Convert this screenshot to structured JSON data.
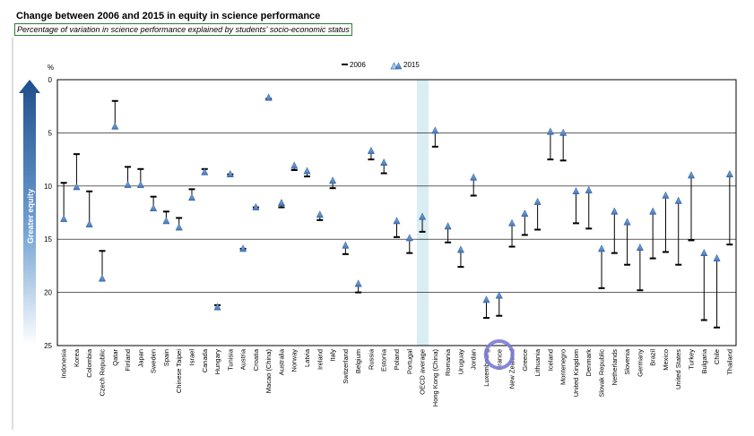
{
  "title": "Change between 2006 and 2015 in equity in science performance",
  "subtitle": "Percentage of variation in science performance explained by students' socio-economic status",
  "arrow_label": "Greater equity",
  "chart_data": {
    "type": "scatter",
    "ylabel": "%",
    "ylim": [
      0,
      25
    ],
    "y_inverted": true,
    "yticks": [
      0,
      5,
      10,
      15,
      20,
      25
    ],
    "grid": true,
    "legend_position": "top-center",
    "highlight_category": "OECD average",
    "circled_category": "France",
    "categories": [
      "Indonesia",
      "Korea",
      "Colombia",
      "Czech Republic",
      "Qatar",
      "Finland",
      "Japan",
      "Sweden",
      "Spain",
      "Chinese Taipei",
      "Israel",
      "Canada",
      "Hungary",
      "Tunisia",
      "Austria",
      "Croatia",
      "Macao (China)",
      "Australia",
      "Norway",
      "Latvia",
      "Ireland",
      "Italy",
      "Switzerland",
      "Belgium",
      "Russia",
      "Estonia",
      "Poland",
      "Portugal",
      "OECD average",
      "Hong Kong (China)",
      "Romania",
      "Uruguay",
      "Jordan",
      "Luxembourg",
      "France",
      "New Zealand",
      "Greece",
      "Lithuania",
      "Iceland",
      "Montenegro",
      "United Kingdom",
      "Denmark",
      "Slovak Republic",
      "Netherlands",
      "Slovenia",
      "Germany",
      "Brazil",
      "Mexico",
      "United States",
      "Turkey",
      "Bulgaria",
      "Chile",
      "Thailand"
    ],
    "series": [
      {
        "name": "2006",
        "values": [
          9.7,
          7,
          10.5,
          16.1,
          2,
          8.2,
          8.4,
          11,
          12.4,
          13,
          10.3,
          8.4,
          21.2,
          8.9,
          15.9,
          12,
          1.8,
          12,
          8.5,
          9.1,
          13.2,
          10.2,
          16.4,
          20,
          7.5,
          8.8,
          14.8,
          16.3,
          14.3,
          6.3,
          15.3,
          17.6,
          10.9,
          22.4,
          22.2,
          15.7,
          14.6,
          14.1,
          7.5,
          7.6,
          13.5,
          14,
          19.6,
          16.3,
          17.4,
          19.8,
          16.8,
          16.2,
          17.4,
          15.1,
          22.6,
          23.3,
          15.5
        ]
      },
      {
        "name": "2015",
        "values": [
          13.1,
          10.1,
          13.6,
          18.7,
          4.4,
          9.9,
          9.9,
          12.1,
          13.3,
          13.9,
          11.1,
          8.7,
          21.4,
          8.9,
          15.9,
          12,
          1.7,
          11.6,
          8.1,
          8.6,
          12.7,
          9.5,
          15.6,
          19.2,
          6.7,
          7.8,
          13.3,
          14.9,
          12.9,
          4.8,
          13.8,
          16,
          9.2,
          20.7,
          20.3,
          13.5,
          12.6,
          11.5,
          4.9,
          5,
          10.5,
          10.4,
          15.9,
          12.4,
          13.4,
          15.8,
          12.4,
          10.9,
          11.4,
          9,
          16.3,
          16.8,
          8.9
        ]
      }
    ]
  }
}
